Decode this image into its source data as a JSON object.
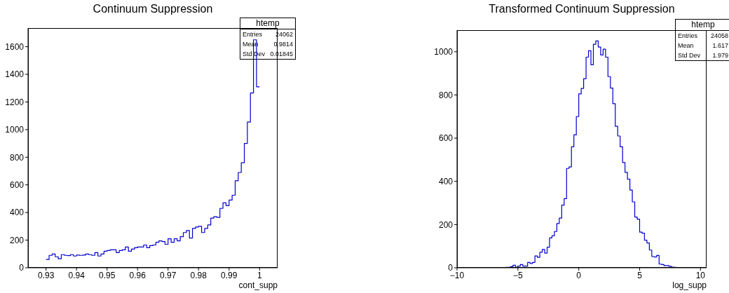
{
  "chart_data": [
    {
      "type": "histogram",
      "title": "Continuum Suppression",
      "xlabel": "cont_supp",
      "bins": [
        0.93,
        0.931,
        0.932,
        0.933,
        0.934,
        0.935,
        0.936,
        0.937,
        0.938,
        0.939,
        0.94,
        0.941,
        0.942,
        0.943,
        0.944,
        0.945,
        0.946,
        0.947,
        0.948,
        0.949,
        0.95,
        0.951,
        0.952,
        0.953,
        0.954,
        0.955,
        0.956,
        0.957,
        0.958,
        0.959,
        0.96,
        0.961,
        0.962,
        0.963,
        0.964,
        0.965,
        0.966,
        0.967,
        0.968,
        0.969,
        0.97,
        0.971,
        0.972,
        0.973,
        0.974,
        0.975,
        0.976,
        0.977,
        0.978,
        0.979,
        0.98,
        0.981,
        0.982,
        0.983,
        0.984,
        0.985,
        0.986,
        0.987,
        0.988,
        0.989,
        0.99,
        0.991,
        0.992,
        0.993,
        0.994,
        0.995,
        0.996,
        0.997,
        0.998,
        0.999,
        1.0
      ],
      "values": [
        60,
        90,
        100,
        80,
        65,
        95,
        90,
        88,
        95,
        85,
        92,
        90,
        92,
        100,
        95,
        90,
        110,
        85,
        100,
        120,
        125,
        130,
        130,
        110,
        125,
        130,
        150,
        120,
        135,
        145,
        150,
        150,
        165,
        145,
        160,
        165,
        185,
        195,
        190,
        170,
        210,
        185,
        210,
        195,
        225,
        255,
        270,
        215,
        285,
        295,
        300,
        255,
        285,
        310,
        360,
        370,
        365,
        430,
        470,
        450,
        490,
        525,
        630,
        690,
        760,
        900,
        1055,
        1265,
        1650,
        1310
      ],
      "color": "#0000cc",
      "xlim": [
        0.9241,
        1.0059
      ],
      "xticks": [
        0.93,
        0.94,
        0.95,
        0.96,
        0.97,
        0.98,
        0.99,
        1
      ],
      "ylim": [
        0,
        1735
      ],
      "yticks": [
        0,
        200,
        400,
        600,
        800,
        1000,
        1200,
        1400,
        1600
      ],
      "annotations": [
        "htemp",
        "Entries",
        "24062",
        "Mean",
        "0.9814",
        "Std Dev",
        "0.01845"
      ]
    },
    {
      "type": "histogram",
      "title": "Transformed Continuum Suppression",
      "xlabel": "log_supp",
      "bins": [
        -6.0,
        -5.8,
        -5.6,
        -5.4,
        -5.2,
        -5.0,
        -4.8,
        -4.6,
        -4.4,
        -4.2,
        -4.0,
        -3.8,
        -3.6,
        -3.4,
        -3.2,
        -3.0,
        -2.8,
        -2.6,
        -2.4,
        -2.2,
        -2.0,
        -1.8,
        -1.6,
        -1.4,
        -1.2,
        -1.0,
        -0.8,
        -0.6,
        -0.4,
        -0.2,
        0.0,
        0.2,
        0.4,
        0.6,
        0.8,
        1.0,
        1.2,
        1.4,
        1.6,
        1.8,
        2.0,
        2.2,
        2.4,
        2.6,
        2.8,
        3.0,
        3.2,
        3.4,
        3.6,
        3.8,
        4.0,
        4.2,
        4.4,
        4.6,
        4.8,
        5.0,
        5.2,
        5.4,
        5.6,
        5.8,
        6.0,
        6.2,
        6.4,
        6.6,
        6.8,
        7.0,
        7.2,
        7.4,
        7.6,
        7.8,
        8.0
      ],
      "values": [
        2,
        2,
        5,
        12,
        3,
        8,
        15,
        8,
        8,
        25,
        20,
        25,
        55,
        48,
        72,
        85,
        68,
        95,
        138,
        148,
        168,
        205,
        230,
        290,
        320,
        460,
        467,
        560,
        615,
        700,
        805,
        830,
        875,
        975,
        1005,
        940,
        1035,
        1050,
        1022,
        985,
        1012,
        975,
        885,
        832,
        760,
        655,
        610,
        560,
        487,
        442,
        410,
        360,
        305,
        235,
        225,
        165,
        160,
        128,
        115,
        82,
        52,
        50,
        57,
        17,
        15,
        10,
        10,
        7,
        3,
        2
      ],
      "color": "#0000cc",
      "xlim": [
        -10,
        10.5
      ],
      "xticks": [
        {
          "value": -10,
          "label": "−10"
        },
        {
          "value": -5,
          "label": "−5"
        },
        0,
        5,
        10
      ],
      "ylim": [
        0,
        1100
      ],
      "yticks": [
        0,
        200,
        400,
        600,
        800,
        1000
      ],
      "annotations": [
        "htemp",
        "Entries",
        "24058",
        "Mean",
        "1.617",
        "Std Dev",
        "1.979"
      ]
    }
  ]
}
